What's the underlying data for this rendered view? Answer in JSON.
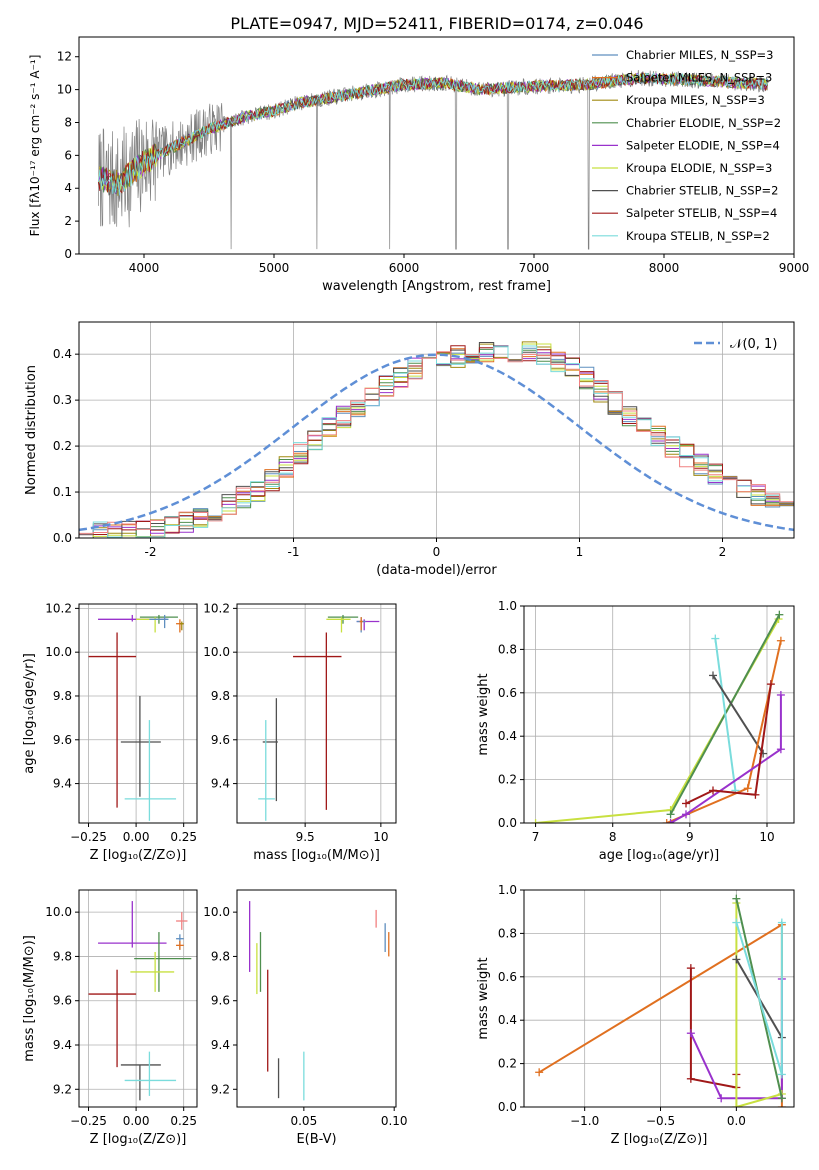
{
  "figure_title": "PLATE=0947, MJD=52411, FIBERID=0174, z=0.046",
  "chart_data": [
    {
      "id": "spectrum",
      "type": "line",
      "title": "PLATE=0947, MJD=52411, FIBERID=0174, z=0.046",
      "xlabel": "wavelength [Angstrom, rest frame]",
      "ylabel": "Flux [fλ10⁻¹⁷ erg cm⁻² s⁻¹ A⁻¹]",
      "xlim": [
        3500,
        9000
      ],
      "ylim": [
        0,
        13.2
      ],
      "xticks": [
        4000,
        5000,
        6000,
        7000,
        8000,
        9000
      ],
      "yticks": [
        0,
        2,
        4,
        6,
        8,
        10,
        12
      ],
      "legend_position": "top-right",
      "continuum_knots": [
        [
          3650,
          4.6
        ],
        [
          3800,
          4.3
        ],
        [
          3900,
          4.9
        ],
        [
          4000,
          5.6
        ],
        [
          4200,
          6.4
        ],
        [
          4500,
          7.6
        ],
        [
          4800,
          8.4
        ],
        [
          5000,
          8.7
        ],
        [
          5200,
          9.2
        ],
        [
          5500,
          9.6
        ],
        [
          5800,
          10.0
        ],
        [
          6000,
          10.3
        ],
        [
          6300,
          10.4
        ],
        [
          6600,
          10.0
        ],
        [
          7000,
          10.2
        ],
        [
          7400,
          10.3
        ],
        [
          7800,
          10.7
        ],
        [
          8200,
          10.6
        ],
        [
          8600,
          10.4
        ],
        [
          8800,
          10.3
        ]
      ],
      "dip_wavelengths": [
        4670,
        5330,
        5890,
        6400,
        6800,
        7420
      ],
      "series": [
        {
          "name": "Chabrier MILES, N_SSP=3",
          "color": "#5f8fbf"
        },
        {
          "name": "Salpeter MILES, N_SSP=3",
          "color": "#e07020"
        },
        {
          "name": "Kroupa MILES, N_SSP=3",
          "color": "#a08a10"
        },
        {
          "name": "Chabrier ELODIE, N_SSP=2",
          "color": "#4f8f4f"
        },
        {
          "name": "Salpeter ELODIE, N_SSP=4",
          "color": "#9932cc"
        },
        {
          "name": "Kroupa ELODIE, N_SSP=3",
          "color": "#c8e040"
        },
        {
          "name": "Chabrier STELIB, N_SSP=2",
          "color": "#505050"
        },
        {
          "name": "Salpeter STELIB, N_SSP=4",
          "color": "#a01818"
        },
        {
          "name": "Kroupa STELIB, N_SSP=2",
          "color": "#7adcdc"
        }
      ]
    },
    {
      "id": "residuals",
      "type": "line",
      "xlabel": "(data-model)/error",
      "ylabel": "Normed distribution",
      "xlim": [
        -2.5,
        2.5
      ],
      "ylim": [
        0,
        0.47
      ],
      "xticks": [
        -2,
        -1,
        0,
        1,
        2
      ],
      "yticks": [
        0.0,
        0.1,
        0.2,
        0.3,
        0.4
      ],
      "grid": true,
      "legend_position": "top-right",
      "gaussian_label": "𝒩(0, 1)",
      "gaussian_color": "#5f8fd6",
      "bin_width": 0.1,
      "histogram_envelope": [
        [
          -2.5,
          0.01
        ],
        [
          -2.0,
          0.015
        ],
        [
          -1.6,
          0.05
        ],
        [
          -1.2,
          0.11
        ],
        [
          -0.9,
          0.2
        ],
        [
          -0.5,
          0.3
        ],
        [
          -0.2,
          0.36
        ],
        [
          0.0,
          0.39
        ],
        [
          0.3,
          0.4
        ],
        [
          0.7,
          0.41
        ],
        [
          1.0,
          0.36
        ],
        [
          1.3,
          0.28
        ],
        [
          1.6,
          0.21
        ],
        [
          2.0,
          0.13
        ],
        [
          2.5,
          0.06
        ]
      ],
      "hist_colors": [
        "#5f8fbf",
        "#e07020",
        "#a08a10",
        "#4f8f4f",
        "#9932cc",
        "#c8e040",
        "#505050",
        "#a01818",
        "#7adcdc",
        "#f08080"
      ]
    },
    {
      "id": "age-vs-Z",
      "type": "scatter",
      "xlabel": "Z [log₁₀(Z/Z⊙)]",
      "ylabel": "age  [log₁₀(age/yr)]",
      "xlim": [
        -0.3,
        0.32
      ],
      "ylim": [
        9.22,
        10.22
      ],
      "xticks": [
        -0.25,
        0,
        0.25
      ],
      "xticklabels": [
        "−0.25",
        "0.00",
        "0.25"
      ],
      "yticks": [
        9.4,
        9.6,
        9.8,
        10.0,
        10.2
      ],
      "grid": true,
      "errorbars": [
        {
          "x": -0.02,
          "xerr": [
            0.18,
            0.18
          ],
          "y": 10.15,
          "yerr": [
            0.01,
            0.02
          ],
          "color": "#9932cc"
        },
        {
          "x": 0.12,
          "xerr": [
            0.1,
            0.1
          ],
          "y": 10.16,
          "yerr": [
            0.03,
            0.01
          ],
          "color": "#4f8f4f"
        },
        {
          "x": 0.1,
          "xerr": [
            0.1,
            0.03
          ],
          "y": 10.15,
          "yerr": [
            0.06,
            0.01
          ],
          "color": "#c8e040"
        },
        {
          "x": 0.15,
          "xerr": [
            0.08,
            0.02
          ],
          "y": 10.15,
          "yerr": [
            0.04,
            0.02
          ],
          "color": "#5f8fbf"
        },
        {
          "x": 0.23,
          "xerr": [
            0.02,
            0.02
          ],
          "y": 10.13,
          "yerr": [
            0.04,
            0.02
          ],
          "color": "#e07020"
        },
        {
          "x": 0.24,
          "xerr": [
            0.01,
            0.01
          ],
          "y": 10.13,
          "yerr": [
            0.03,
            0.01
          ],
          "color": "#a08a10"
        },
        {
          "x": -0.1,
          "xerr": [
            0.15,
            0.1
          ],
          "y": 9.98,
          "yerr": [
            0.69,
            0.11
          ],
          "color": "#a01818"
        },
        {
          "x": 0.02,
          "xerr": [
            0.1,
            0.11
          ],
          "y": 9.59,
          "yerr": [
            0.25,
            0.21
          ],
          "color": "#505050"
        },
        {
          "x": 0.07,
          "xerr": [
            0.13,
            0.14
          ],
          "y": 9.33,
          "yerr": [
            0.1,
            0.36
          ],
          "color": "#7adcdc"
        }
      ]
    },
    {
      "id": "age-vs-mass",
      "type": "scatter",
      "xlabel": "mass [log₁₀(M/M⊙)]",
      "xlim": [
        9.05,
        10.1
      ],
      "ylim": [
        9.22,
        10.22
      ],
      "xticks": [
        9.5,
        10.0
      ],
      "yticks": [
        9.4,
        9.6,
        9.8,
        10.0,
        10.2
      ],
      "grid": true,
      "errorbars": [
        {
          "x": 9.75,
          "xerr": [
            0.1,
            0.1
          ],
          "y": 10.16,
          "yerr": [
            0.03,
            0.01
          ],
          "color": "#4f8f4f"
        },
        {
          "x": 9.74,
          "xerr": [
            0.1,
            0.06
          ],
          "y": 10.15,
          "yerr": [
            0.06,
            0.01
          ],
          "color": "#c8e040"
        },
        {
          "x": 9.89,
          "xerr": [
            0.05,
            0.1
          ],
          "y": 10.14,
          "yerr": [
            0.04,
            0.01
          ],
          "color": "#9932cc"
        },
        {
          "x": 9.87,
          "xerr": [
            0.03,
            0.03
          ],
          "y": 10.14,
          "yerr": [
            0.05,
            0.02
          ],
          "color": "#5f8fbf"
        },
        {
          "x": 9.87,
          "xerr": [
            0.01,
            0.01
          ],
          "y": 10.14,
          "yerr": [
            0.04,
            0.02
          ],
          "color": "#e07020"
        },
        {
          "x": 9.64,
          "xerr": [
            0.22,
            0.1
          ],
          "y": 9.98,
          "yerr": [
            0.7,
            0.11
          ],
          "color": "#a01818"
        },
        {
          "x": 9.31,
          "xerr": [
            0.09,
            0.01
          ],
          "y": 9.59,
          "yerr": [
            0.27,
            0.2
          ],
          "color": "#505050"
        },
        {
          "x": 9.24,
          "xerr": [
            0.05,
            0.06
          ],
          "y": 9.33,
          "yerr": [
            0.1,
            0.36
          ],
          "color": "#7adcdc"
        }
      ]
    },
    {
      "id": "mass-weight-vs-age",
      "type": "line",
      "xlabel": "age  [log₁₀(age/yr)]",
      "ylabel": "mass weight",
      "xlim": [
        6.85,
        10.35
      ],
      "ylim": [
        0,
        1.0
      ],
      "xticks": [
        7,
        8,
        9,
        10
      ],
      "yticks": [
        0.0,
        0.2,
        0.4,
        0.6,
        0.8,
        1.0
      ],
      "grid": true,
      "series": [
        {
          "color": "#c8e040",
          "points": [
            [
              7.0,
              0.0
            ],
            [
              8.75,
              0.06
            ],
            [
              10.15,
              0.94
            ]
          ]
        },
        {
          "color": "#4f8f4f",
          "points": [
            [
              8.75,
              0.04
            ],
            [
              10.16,
              0.96
            ]
          ]
        },
        {
          "color": "#7adcdc",
          "points": [
            [
              9.33,
              0.85
            ],
            [
              9.59,
              0.15
            ]
          ]
        },
        {
          "color": "#505050",
          "points": [
            [
              9.3,
              0.68
            ],
            [
              9.95,
              0.32
            ]
          ]
        },
        {
          "color": "#e07020",
          "points": [
            [
              8.7,
              0.0
            ],
            [
              9.75,
              0.16
            ],
            [
              10.18,
              0.84
            ]
          ]
        },
        {
          "color": "#9932cc",
          "points": [
            [
              8.75,
              0.0
            ],
            [
              8.95,
              0.04
            ],
            [
              10.18,
              0.34
            ],
            [
              10.18,
              0.59
            ]
          ]
        },
        {
          "color": "#a01818",
          "points": [
            [
              8.95,
              0.09
            ],
            [
              9.3,
              0.15
            ],
            [
              9.85,
              0.13
            ],
            [
              10.05,
              0.64
            ]
          ]
        }
      ]
    },
    {
      "id": "mass-vs-Z",
      "type": "scatter",
      "xlabel": "Z [log₁₀(Z/Z⊙)]",
      "ylabel": "mass [log₁₀(M/M⊙)]",
      "xlim": [
        -0.3,
        0.32
      ],
      "ylim": [
        9.12,
        10.1
      ],
      "xticks": [
        -0.25,
        0,
        0.25
      ],
      "xticklabels": [
        "−0.25",
        "0.00",
        "0.25"
      ],
      "yticks": [
        9.2,
        9.4,
        9.6,
        9.8,
        10.0
      ],
      "grid": true,
      "errorbars": [
        {
          "x": 0.24,
          "xerr": [
            0.03,
            0.03
          ],
          "y": 9.96,
          "yerr": [
            0.04,
            0.04
          ],
          "color": "#f08080"
        },
        {
          "x": 0.23,
          "xerr": [
            0.02,
            0.02
          ],
          "y": 9.88,
          "yerr": [
            0.05,
            0.02
          ],
          "color": "#5f8fbf"
        },
        {
          "x": 0.23,
          "xerr": [
            0.02,
            0.02
          ],
          "y": 9.85,
          "yerr": [
            0.02,
            0.02
          ],
          "color": "#e07020"
        },
        {
          "x": -0.02,
          "xerr": [
            0.18,
            0.18
          ],
          "y": 9.86,
          "yerr": [
            0.02,
            0.19
          ],
          "color": "#9932cc"
        },
        {
          "x": 0.12,
          "xerr": [
            0.13,
            0.17
          ],
          "y": 9.79,
          "yerr": [
            0.15,
            0.12
          ],
          "color": "#4f8f4f"
        },
        {
          "x": 0.1,
          "xerr": [
            0.13,
            0.1
          ],
          "y": 9.73,
          "yerr": [
            0.09,
            0.09
          ],
          "color": "#c8e040"
        },
        {
          "x": -0.1,
          "xerr": [
            0.15,
            0.1
          ],
          "y": 9.63,
          "yerr": [
            0.33,
            0.11
          ],
          "color": "#a01818"
        },
        {
          "x": 0.02,
          "xerr": [
            0.1,
            0.11
          ],
          "y": 9.31,
          "yerr": [
            0.16,
            0.0
          ],
          "color": "#505050"
        },
        {
          "x": 0.07,
          "xerr": [
            0.13,
            0.14
          ],
          "y": 9.24,
          "yerr": [
            0.07,
            0.13
          ],
          "color": "#7adcdc"
        }
      ]
    },
    {
      "id": "mass-vs-EBV",
      "type": "scatter",
      "xlabel": "E(B-V)",
      "xlim": [
        0.013,
        0.101
      ],
      "ylim": [
        9.12,
        10.1
      ],
      "xticks": [
        0.05,
        0.1
      ],
      "xticklabels": [
        "0.05",
        "0.10"
      ],
      "yticks": [
        9.2,
        9.4,
        9.6,
        9.8,
        10.0
      ],
      "errorbars": [
        {
          "x": 0.02,
          "y": 9.9,
          "yerr": [
            0.17,
            0.15
          ],
          "color": "#9932cc"
        },
        {
          "x": 0.024,
          "y": 9.78,
          "yerr": [
            0.15,
            0.08
          ],
          "color": "#c8e040"
        },
        {
          "x": 0.026,
          "y": 9.78,
          "yerr": [
            0.14,
            0.13
          ],
          "color": "#4f8f4f"
        },
        {
          "x": 0.03,
          "y": 9.52,
          "yerr": [
            0.24,
            0.22
          ],
          "color": "#a01818"
        },
        {
          "x": 0.036,
          "y": 9.25,
          "yerr": [
            0.09,
            0.09
          ],
          "color": "#505050"
        },
        {
          "x": 0.05,
          "y": 9.27,
          "yerr": [
            0.12,
            0.1
          ],
          "color": "#7adcdc"
        },
        {
          "x": 0.09,
          "y": 9.97,
          "yerr": [
            0.04,
            0.04
          ],
          "color": "#f08080"
        },
        {
          "x": 0.095,
          "y": 9.89,
          "yerr": [
            0.07,
            0.06
          ],
          "color": "#5f8fbf"
        },
        {
          "x": 0.097,
          "y": 9.86,
          "yerr": [
            0.06,
            0.05
          ],
          "color": "#e07020"
        }
      ]
    },
    {
      "id": "mass-weight-vs-Z",
      "type": "line",
      "xlabel": "Z [log₁₀(Z/Z⊙)]",
      "ylabel": "mass weight",
      "xlim": [
        -1.4,
        0.38
      ],
      "ylim": [
        0,
        1.0
      ],
      "xticks": [
        -1.0,
        -0.5,
        0.0
      ],
      "xticklabels": [
        "−1.0",
        "−0.5",
        "0.0"
      ],
      "yticks": [
        0.0,
        0.2,
        0.4,
        0.6,
        0.8,
        1.0
      ],
      "grid": true,
      "series": [
        {
          "color": "#e07020",
          "points": [
            [
              -1.3,
              0.16
            ],
            [
              0.3,
              0.84
            ],
            [
              0.3,
              0.0
            ]
          ]
        },
        {
          "color": "#a01818",
          "points": [
            [
              -0.3,
              0.64
            ],
            [
              -0.3,
              0.13
            ],
            [
              0.0,
              0.09
            ],
            [
              0.0,
              0.15
            ]
          ]
        },
        {
          "color": "#9932cc",
          "points": [
            [
              -0.3,
              0.34
            ],
            [
              -0.1,
              0.04
            ],
            [
              0.3,
              0.04
            ],
            [
              0.3,
              0.59
            ]
          ]
        },
        {
          "color": "#c8e040",
          "points": [
            [
              0.0,
              0.94
            ],
            [
              0.0,
              0.0
            ],
            [
              0.3,
              0.06
            ]
          ]
        },
        {
          "color": "#4f8f4f",
          "points": [
            [
              0.0,
              0.96
            ],
            [
              0.3,
              0.04
            ]
          ]
        },
        {
          "color": "#505050",
          "points": [
            [
              0.0,
              0.68
            ],
            [
              0.3,
              0.32
            ]
          ]
        },
        {
          "color": "#7adcdc",
          "points": [
            [
              0.0,
              0.85
            ],
            [
              0.3,
              0.15
            ],
            [
              0.3,
              0.85
            ]
          ]
        }
      ]
    }
  ]
}
